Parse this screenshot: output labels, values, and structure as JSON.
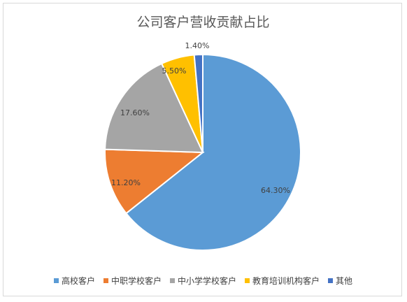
{
  "chart_data": {
    "type": "pie",
    "title": "公司客户营收贡献占比",
    "categories": [
      "高校客户",
      "中职学校客户",
      "中小学学校客户",
      "教育培训机构客户",
      "其他"
    ],
    "values": [
      64.3,
      11.2,
      17.6,
      5.5,
      1.4
    ],
    "labels": [
      "64.30%",
      "11.20%",
      "17.60%",
      "5.50%",
      "1.40%"
    ],
    "colors": [
      "#5b9bd5",
      "#ed7d31",
      "#a5a5a5",
      "#ffc000",
      "#4472c4"
    ],
    "legend_position": "bottom",
    "start_angle_deg": 0,
    "direction": "clockwise"
  }
}
